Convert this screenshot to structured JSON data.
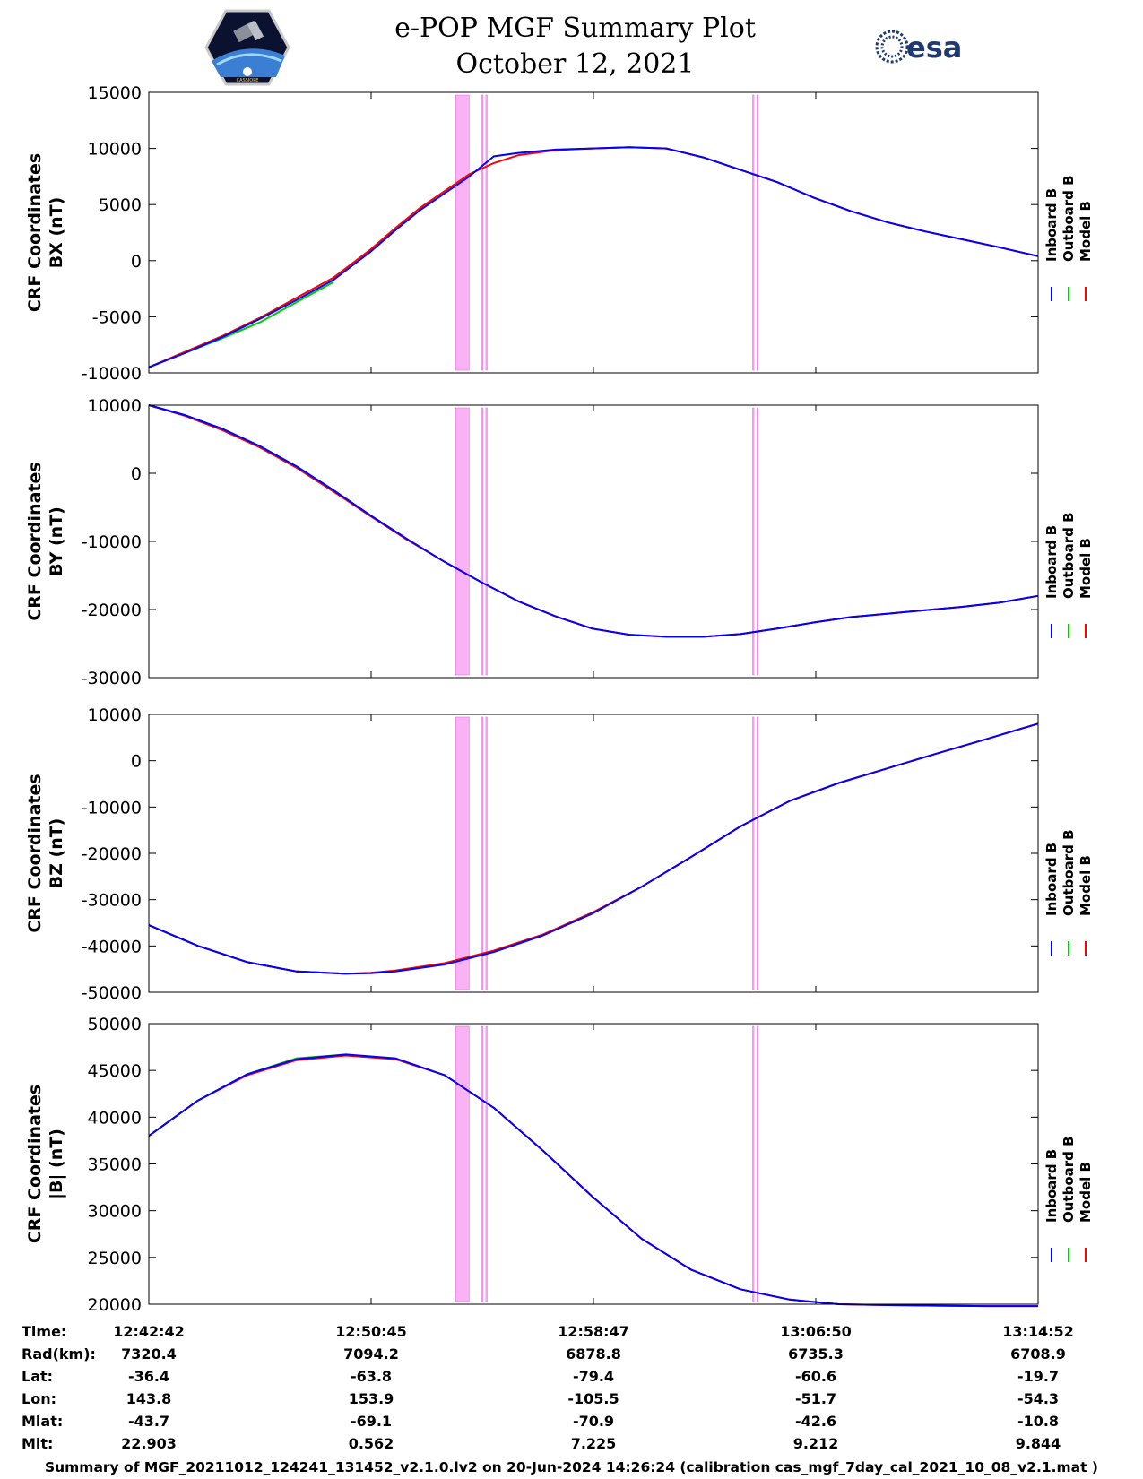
{
  "header": {
    "title_line1": "e-POP MGF Summary Plot",
    "title_line2": "October 12, 2021",
    "logo_left": "CASSIOPE",
    "logo_right": "esa"
  },
  "colors": {
    "inboard": "#0000ff",
    "outboard": "#00cc00",
    "model": "#ff0000",
    "highlight": "#f9b3f5",
    "highlight_edge": "#f06ee8"
  },
  "legend": [
    "Inboard B",
    "Outboard B",
    "Model B"
  ],
  "highlight_bands_minutes": [
    [
      24.9,
      26.0
    ],
    [
      27.0,
      27.1
    ],
    [
      27.35,
      27.45
    ],
    [
      49.0,
      49.1
    ],
    [
      49.35,
      49.45
    ]
  ],
  "chart_data": [
    {
      "type": "line",
      "ylabel_line1": "CRF Coordinates",
      "ylabel_line2": "BX (nT)",
      "ylim": [
        -10000,
        15000
      ],
      "yticks": [
        -10000,
        -5000,
        0,
        5000,
        10000,
        15000
      ],
      "x_minutes": [
        0,
        3,
        6,
        9,
        12,
        15,
        18,
        20,
        22,
        24,
        26,
        28,
        30,
        33,
        36,
        39,
        42,
        45,
        48,
        51,
        54,
        57,
        60,
        63,
        66,
        69,
        72.17
      ],
      "series": [
        {
          "name": "Inboard B",
          "values": [
            -9500,
            -8200,
            -6800,
            -5200,
            -3500,
            -1700,
            800,
            2700,
            4500,
            6000,
            7500,
            9300,
            9600,
            9900,
            10000,
            10100,
            10000,
            9200,
            8100,
            7000,
            5600,
            4400,
            3400,
            2600,
            1900,
            1200,
            400
          ]
        },
        {
          "name": "Outboard B",
          "values": [
            -9500,
            -8200,
            -6900,
            -5500,
            -3700,
            -1900
          ]
        },
        {
          "name": "Model B",
          "values": [
            -9500,
            -8100,
            -6700,
            -5100,
            -3300,
            -1500,
            1000,
            2900,
            4700,
            6200,
            7700,
            8700,
            9400,
            9850,
            10000,
            10100,
            10000,
            9200,
            8100,
            7000,
            5600,
            4400,
            3400,
            2600,
            1900,
            1200,
            400
          ]
        }
      ]
    },
    {
      "type": "line",
      "ylabel_line1": "CRF Coordinates",
      "ylabel_line2": "BY (nT)",
      "ylim": [
        -30000,
        10000
      ],
      "yticks": [
        -30000,
        -20000,
        -10000,
        0,
        10000
      ],
      "x_minutes": [
        0,
        3,
        6,
        9,
        12,
        15,
        18,
        21,
        24,
        27,
        30,
        33,
        36,
        39,
        42,
        45,
        48,
        51,
        54,
        57,
        60,
        63,
        66,
        69,
        72.17
      ],
      "series": [
        {
          "name": "Inboard B",
          "values": [
            10000,
            8500,
            6500,
            4000,
            1000,
            -2500,
            -6200,
            -9700,
            -13000,
            -16000,
            -18800,
            -21000,
            -22800,
            -23700,
            -24000,
            -24000,
            -23600,
            -22800,
            -21900,
            -21100,
            -20600,
            -20100,
            -19600,
            -19000,
            -18000
          ]
        },
        {
          "name": "Outboard B",
          "values": [
            10000,
            8500,
            6500,
            4000,
            1000,
            -2500,
            -6200,
            -9700
          ]
        },
        {
          "name": "Model B",
          "values": [
            10000,
            8400,
            6300,
            3800,
            800,
            -2700,
            -6300,
            -9800,
            -13000,
            -16000,
            -18800,
            -21000,
            -22800,
            -23700,
            -24000,
            -24000,
            -23600,
            -22800,
            -21900,
            -21100,
            -20600,
            -20100,
            -19600,
            -19000,
            -18000
          ]
        }
      ]
    },
    {
      "type": "line",
      "ylabel_line1": "CRF Coordinates",
      "ylabel_line2": "BZ (nT)",
      "ylim": [
        -50000,
        10000
      ],
      "yticks": [
        -50000,
        -40000,
        -30000,
        -20000,
        -10000,
        0,
        10000
      ],
      "x_minutes": [
        0,
        4,
        8,
        12,
        16,
        18,
        20,
        24,
        28,
        32,
        36,
        40,
        44,
        48,
        52,
        56,
        60,
        64,
        68,
        72.17
      ],
      "series": [
        {
          "name": "Inboard B",
          "values": [
            -35500,
            -40000,
            -43500,
            -45500,
            -46000,
            -45900,
            -45500,
            -44000,
            -41300,
            -37700,
            -33000,
            -27200,
            -20800,
            -14200,
            -8700,
            -4800,
            -1600,
            1600,
            4700,
            8000
          ]
        },
        {
          "name": "Outboard B",
          "values": [
            -35500,
            -40000,
            -43500,
            -45500,
            -46000
          ]
        },
        {
          "name": "Model B",
          "values": [
            -35500,
            -40000,
            -43500,
            -45500,
            -46000,
            -45800,
            -45300,
            -43700,
            -41000,
            -37500,
            -32800,
            -27200,
            -20800,
            -14200,
            -8700,
            -4800,
            -1600,
            1600,
            4700,
            8000
          ]
        }
      ]
    },
    {
      "type": "line",
      "ylabel_line1": "CRF Coordinates",
      "ylabel_line2": "|B| (nT)",
      "ylim": [
        20000,
        50000
      ],
      "yticks": [
        20000,
        25000,
        30000,
        35000,
        40000,
        45000,
        50000
      ],
      "x_minutes": [
        0,
        4,
        8,
        12,
        16,
        20,
        24,
        28,
        32,
        36,
        40,
        44,
        48,
        52,
        56,
        60,
        64,
        68,
        72.17
      ],
      "series": [
        {
          "name": "Inboard B",
          "values": [
            38000,
            41800,
            44600,
            46200,
            46700,
            46300,
            44500,
            41000,
            36400,
            31500,
            27000,
            23700,
            21600,
            20500,
            20000,
            19900,
            19850,
            19800,
            19800
          ]
        },
        {
          "name": "Outboard B",
          "values": [
            38000,
            41800,
            44600,
            46300,
            46700
          ]
        },
        {
          "name": "Model B",
          "values": [
            38000,
            41800,
            44500,
            46100,
            46600,
            46200,
            44500,
            41000,
            36400,
            31500,
            27000,
            23700,
            21600,
            20500,
            20000,
            19900,
            19850,
            19800,
            19800
          ]
        }
      ]
    }
  ],
  "ephemeris": {
    "labels": [
      "Time:",
      "Rad(km):",
      "Lat:",
      "Lon:",
      "Mlat:",
      "Mlt:"
    ],
    "columns": [
      [
        "12:42:42",
        "7320.4",
        "-36.4",
        "143.8",
        "-43.7",
        "22.903"
      ],
      [
        "12:50:45",
        "7094.2",
        "-63.8",
        "153.9",
        "-69.1",
        "0.562"
      ],
      [
        "12:58:47",
        "6878.8",
        "-79.4",
        "-105.5",
        "-70.9",
        "7.225"
      ],
      [
        "13:06:50",
        "6735.3",
        "-60.6",
        "-51.7",
        "-42.6",
        "9.212"
      ],
      [
        "13:14:52",
        "6708.9",
        "-19.7",
        "-54.3",
        "-10.8",
        "9.844"
      ]
    ]
  },
  "footer": "Summary of MGF_20211012_124241_131452_v2.1.0.lv2 on 20-Jun-2024 14:26:24 (calibration cas_mgf_7day_cal_2021_10_08_v2.1.mat )"
}
